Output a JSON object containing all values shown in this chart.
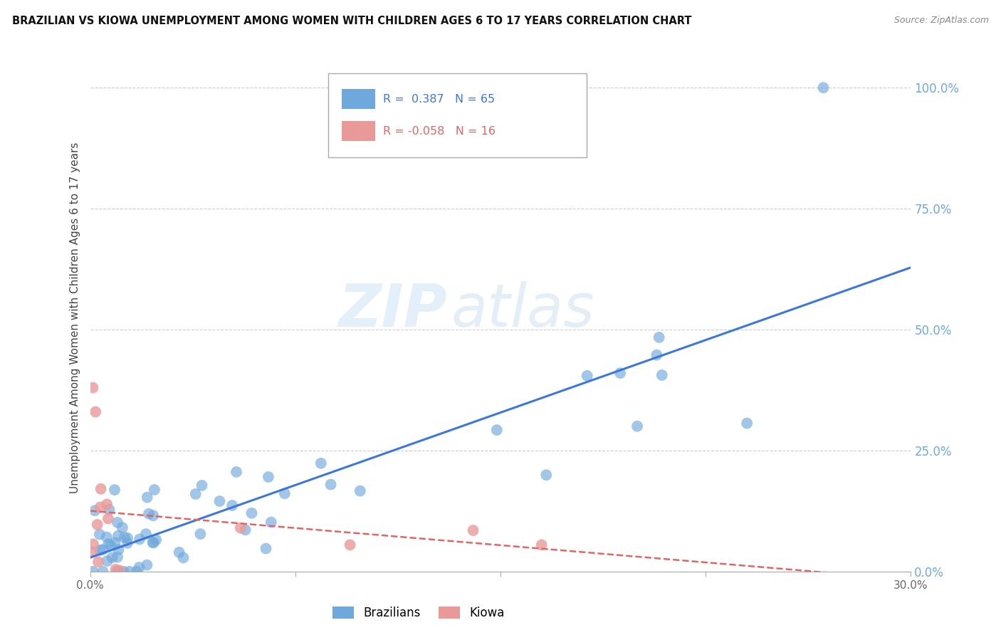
{
  "title": "BRAZILIAN VS KIOWA UNEMPLOYMENT AMONG WOMEN WITH CHILDREN AGES 6 TO 17 YEARS CORRELATION CHART",
  "source": "Source: ZipAtlas.com",
  "ylabel": "Unemployment Among Women with Children Ages 6 to 17 years",
  "xlim": [
    0.0,
    0.3
  ],
  "ylim": [
    0.0,
    1.05
  ],
  "right_yticklabels": [
    "0.0%",
    "25.0%",
    "50.0%",
    "75.0%",
    "100.0%"
  ],
  "right_ytick_vals": [
    0.0,
    0.25,
    0.5,
    0.75,
    1.0
  ],
  "watermark_zip": "ZIP",
  "watermark_atlas": "atlas",
  "legend_brazilian_R": "0.387",
  "legend_brazilian_N": "65",
  "legend_kiowa_R": "-0.058",
  "legend_kiowa_N": "16",
  "blue_color": "#6fa8dc",
  "pink_color": "#ea9999",
  "blue_line_color": "#3c78d8",
  "pink_line_color": "#e06666",
  "right_axis_color": "#6fa8dc",
  "background_color": "#ffffff",
  "grid_color": "#cccccc"
}
